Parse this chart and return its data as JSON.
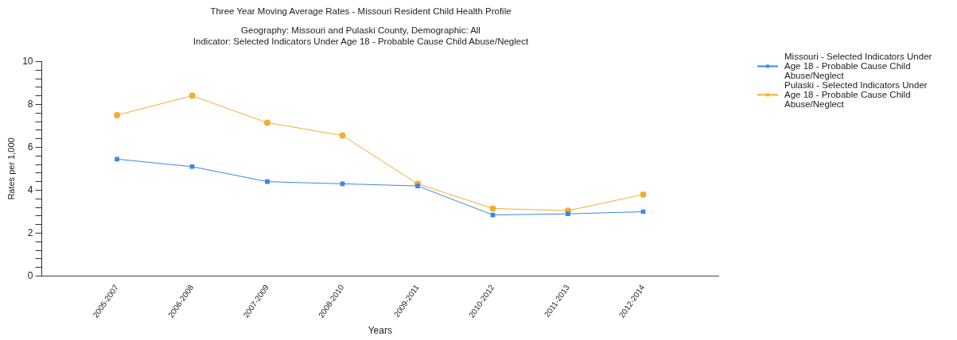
{
  "chart_data": {
    "type": "line",
    "title": "Three Year Moving Average Rates - Missouri Resident Child Health Profile",
    "subtitle": "Geography: Missouri and Pulaski County, Demographic: All\nIndicator: Selected Indicators Under Age 18 - Probable Cause Child Abuse/Neglect",
    "xlabel": "Years",
    "ylabel": "Rates per 1,000",
    "categories": [
      "2005-2007",
      "2006-2008",
      "2007-2009",
      "2008-2010",
      "2009-2011",
      "2010-2012",
      "2011-2013",
      "2012-2014"
    ],
    "series": [
      {
        "name": "Missouri - Selected Indicators Under Age 18 - Probable Cause Child Abuse/Neglect",
        "color": "#3b86e8",
        "marker": "square",
        "values": [
          5.45,
          5.1,
          4.4,
          4.3,
          4.2,
          2.85,
          2.9,
          3.0
        ]
      },
      {
        "name": "Pulaski - Selected Indicators Under Age 18 - Probable Cause Child Abuse/Neglect",
        "color": "#f0ad35",
        "marker": "circle",
        "values": [
          7.5,
          8.4,
          7.15,
          6.55,
          4.3,
          3.15,
          3.05,
          3.8
        ]
      }
    ],
    "ylim": [
      0,
      10
    ],
    "yticks": [
      0,
      {
        "value": 0.4,
        "label": null
      },
      {
        "value": 0.8,
        "label": null
      },
      {
        "value": 1.2,
        "label": null
      },
      {
        "value": 1.6,
        "label": null
      },
      2,
      {
        "value": 2.4,
        "label": null
      },
      {
        "value": 2.8,
        "label": null
      },
      {
        "value": 3.2,
        "label": null
      },
      {
        "value": 3.6,
        "label": null
      },
      4,
      {
        "value": 4.4,
        "label": null
      },
      {
        "value": 4.8,
        "label": null
      },
      {
        "value": 5.2,
        "label": null
      },
      {
        "value": 5.6,
        "label": null
      },
      6,
      {
        "value": 6.4,
        "label": null
      },
      {
        "value": 6.8,
        "label": null
      },
      {
        "value": 7.2,
        "label": null
      },
      {
        "value": 7.6,
        "label": null
      },
      8,
      {
        "value": 8.4,
        "label": null
      },
      {
        "value": 8.8,
        "label": null
      },
      {
        "value": 9.2,
        "label": null
      },
      {
        "value": 9.6,
        "label": null
      },
      10
    ],
    "legend": "top right",
    "grid": false,
    "line_style": "solid"
  }
}
